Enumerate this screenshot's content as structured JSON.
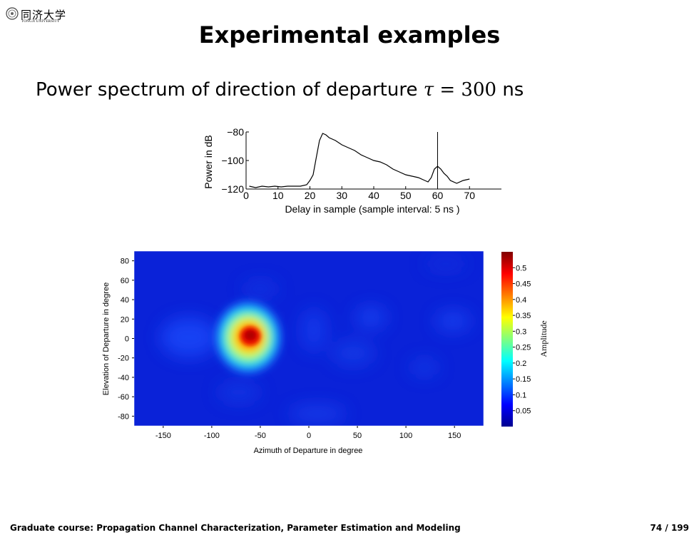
{
  "logo": {
    "cn": "同济大学",
    "en": "TONGJI UNIVERSITY"
  },
  "title": "Experimental examples",
  "subtitle": {
    "prefix": "Power spectrum of direction of departure ",
    "symbol": "τ",
    "equals": " = ",
    "value": "300",
    "unit": " ns"
  },
  "chart_data": [
    {
      "type": "line",
      "xlabel": "Delay in sample (sample interval: 5 ns )",
      "ylabel": "Power in dB",
      "xlim": [
        0,
        80
      ],
      "ylim": [
        -120,
        -80
      ],
      "xticks": [
        0,
        10,
        20,
        30,
        40,
        50,
        60,
        70
      ],
      "yticks": [
        -80,
        -100,
        -120
      ],
      "marker_x": 60,
      "x": [
        1,
        3,
        5,
        7,
        9,
        11,
        13,
        15,
        17,
        19,
        20,
        21,
        22,
        23,
        24,
        25,
        26,
        28,
        30,
        32,
        34,
        36,
        38,
        40,
        42,
        44,
        46,
        48,
        50,
        52,
        54,
        56,
        57,
        58,
        59,
        60,
        61,
        62,
        63,
        64,
        66,
        68,
        70
      ],
      "y": [
        -118,
        -119,
        -118,
        -118.5,
        -118,
        -118.5,
        -118,
        -118,
        -118,
        -117,
        -114,
        -110,
        -98,
        -86,
        -81,
        -82,
        -84,
        -86,
        -89,
        -91,
        -93,
        -96,
        -98,
        -100,
        -101,
        -103,
        -106,
        -108,
        -110,
        -111,
        -112,
        -114,
        -115,
        -112,
        -106,
        -104,
        -106,
        -109,
        -111,
        -114,
        -116,
        -114,
        -113
      ]
    },
    {
      "type": "heatmap",
      "xlabel": "Azimuth of Departure in degree",
      "ylabel": "Elevation of Departure in degree",
      "xlim": [
        -180,
        180
      ],
      "ylim": [
        -90,
        90
      ],
      "xticks": [
        -150,
        -100,
        -50,
        0,
        50,
        100,
        150
      ],
      "yticks": [
        80,
        60,
        40,
        20,
        0,
        -20,
        -40,
        -60,
        -80
      ],
      "colorbar": {
        "label": "Amplitude",
        "ticks": [
          "0.5",
          "0.45",
          "0.4",
          "0.35",
          "0.3",
          "0.25",
          "0.2",
          "0.15",
          "0.1",
          "0.05"
        ],
        "min": 0,
        "max": 0.55
      },
      "peak": {
        "azimuth": -60,
        "elevation": 0,
        "amplitude": 0.55
      }
    }
  ],
  "footer": {
    "course": "Graduate course: Propagation Channel Characterization, Parameter Estimation and Modeling",
    "page": "74 / 199"
  }
}
